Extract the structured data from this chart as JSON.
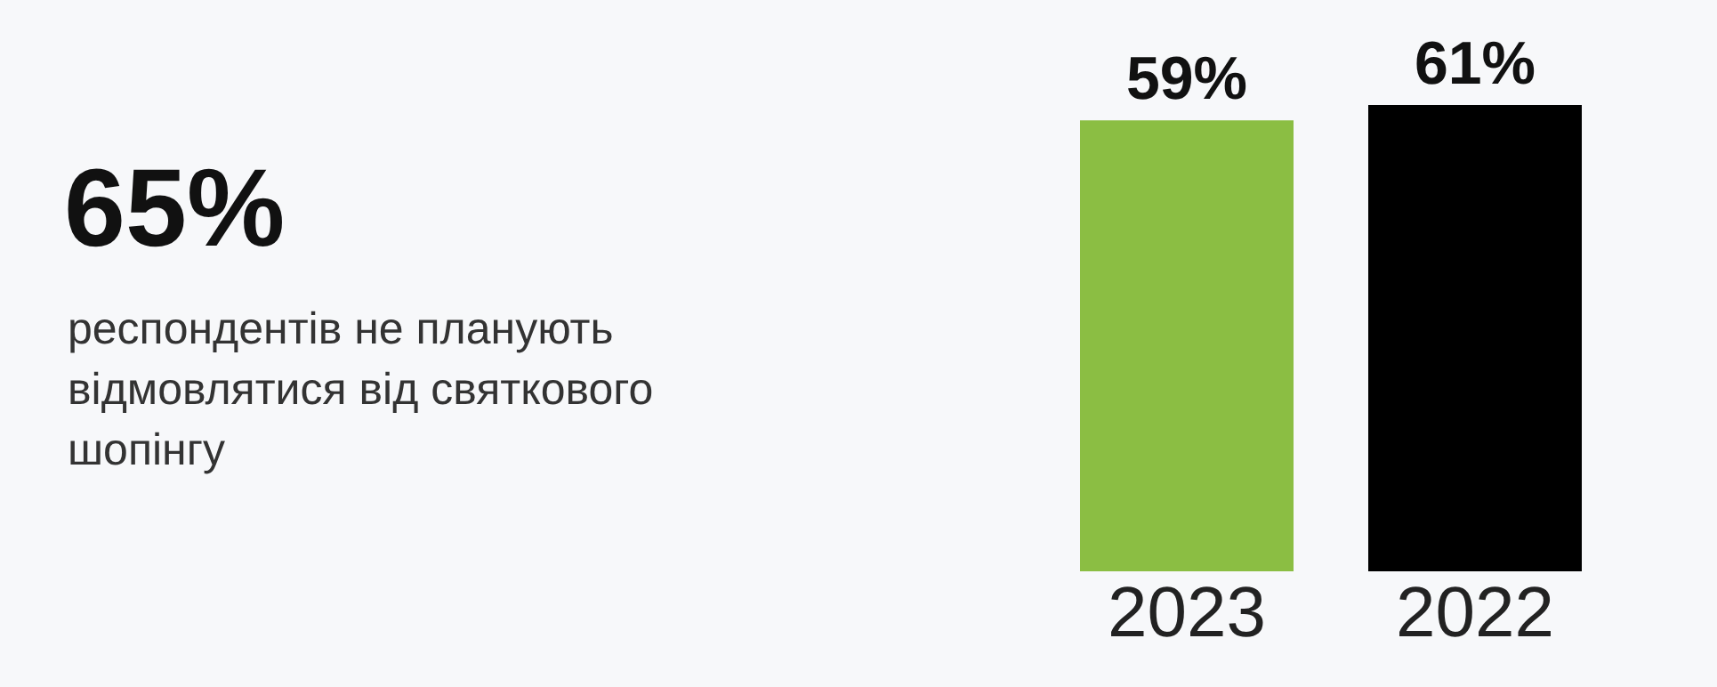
{
  "chart_data": {
    "type": "bar",
    "title": "65%",
    "subtitle": "респондентів не планують відмовлятися від святкового шопінгу",
    "categories": [
      "2023",
      "2022"
    ],
    "values": [
      59,
      61
    ],
    "colors": [
      "#8bbe43",
      "#000000"
    ],
    "value_labels": [
      "59%",
      "61%"
    ]
  }
}
